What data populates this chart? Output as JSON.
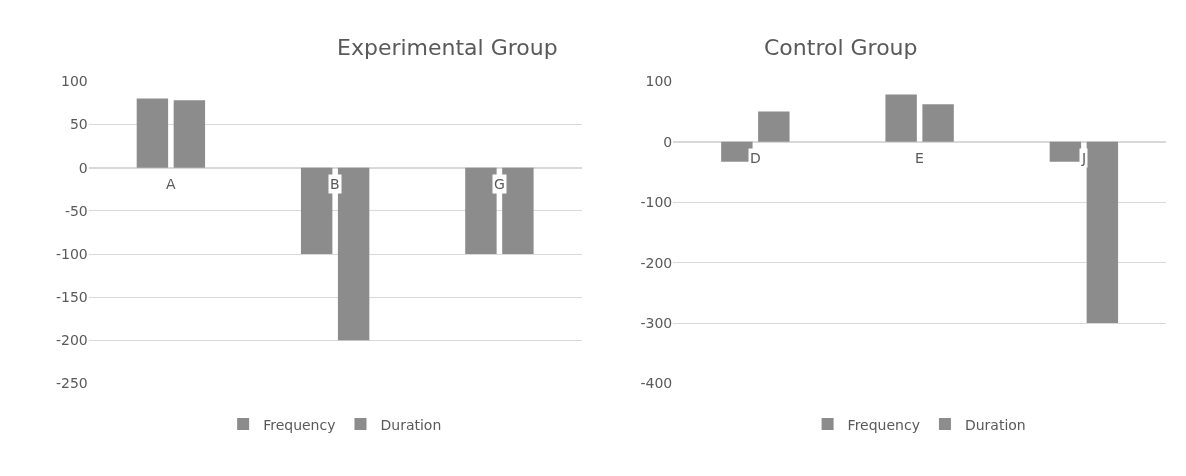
{
  "chart_data": [
    {
      "type": "bar",
      "title": "Experimental Group",
      "categories": [
        "A",
        "B",
        "G"
      ],
      "series": [
        {
          "name": "Frequency",
          "color": "#8c8c8c",
          "values": [
            80,
            -100,
            -100
          ]
        },
        {
          "name": "Duration",
          "color": "#8c8c8c",
          "values": [
            78,
            -200,
            -100
          ]
        }
      ],
      "ylim": [
        -250,
        100
      ],
      "yticks": [
        -250,
        -200,
        -150,
        -100,
        -50,
        0,
        50,
        100
      ],
      "grid": "y",
      "legend": "bottom"
    },
    {
      "type": "bar",
      "title": "Control Group",
      "categories": [
        "D",
        "E",
        "J"
      ],
      "series": [
        {
          "name": "Frequency",
          "color": "#8c8c8c",
          "values": [
            -33,
            78,
            -33
          ]
        },
        {
          "name": "Duration",
          "color": "#8c8c8c",
          "values": [
            50,
            62,
            -300
          ]
        }
      ],
      "ylim": [
        -400,
        100
      ],
      "yticks": [
        -400,
        -300,
        -200,
        -100,
        0,
        100
      ],
      "grid": "y",
      "legend": "bottom"
    }
  ]
}
